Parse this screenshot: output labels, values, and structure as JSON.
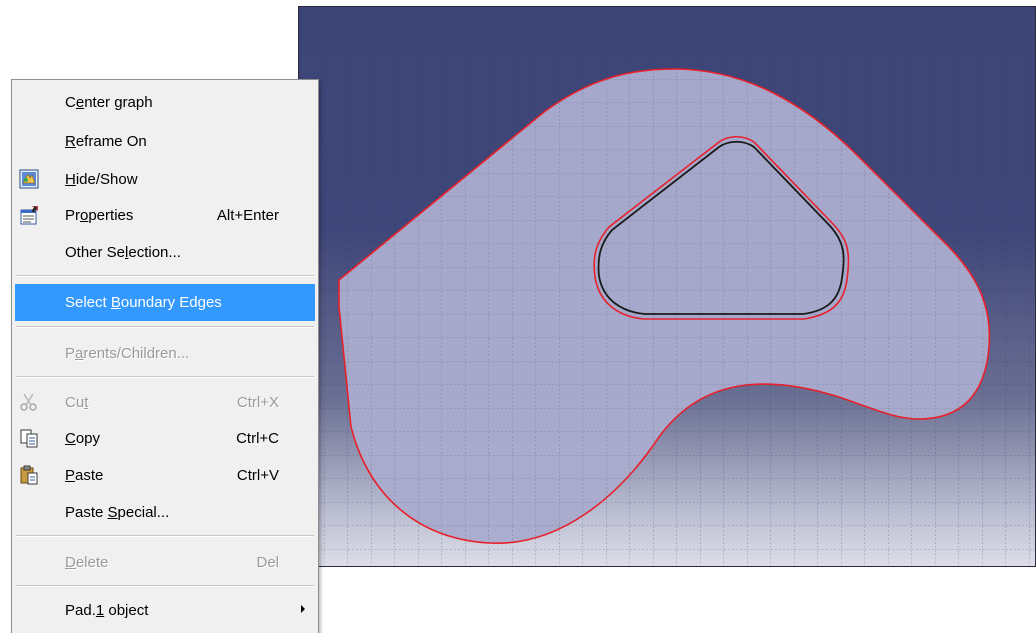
{
  "menu": {
    "items": [
      {
        "id": "center-graph",
        "pre": "C",
        "ul": "e",
        "post": "nter graph",
        "shortcut": "",
        "state": "normal"
      },
      {
        "id": "reframe-on",
        "pre": "",
        "ul": "R",
        "post": "eframe On",
        "shortcut": "",
        "state": "normal"
      },
      {
        "id": "hide-show",
        "pre": "",
        "ul": "H",
        "post": "ide/Show",
        "shortcut": "",
        "state": "normal",
        "icon": "hide-show-icon"
      },
      {
        "id": "properties",
        "pre": "Pr",
        "ul": "o",
        "post": "perties",
        "shortcut": "Alt+Enter",
        "state": "normal",
        "icon": "properties-icon"
      },
      {
        "id": "other-selection",
        "pre": "Other Se",
        "ul": "l",
        "post": "ection...",
        "shortcut": "",
        "state": "normal"
      },
      {
        "id": "select-boundary-edges",
        "pre": "Select ",
        "ul": "B",
        "post": "oundary Edges",
        "shortcut": "",
        "state": "highlighted"
      },
      {
        "id": "parents-children",
        "pre": "P",
        "ul": "a",
        "post": "rents/Children...",
        "shortcut": "",
        "state": "disabled"
      },
      {
        "id": "cut",
        "pre": "Cu",
        "ul": "t",
        "post": "",
        "shortcut": "Ctrl+X",
        "state": "disabled",
        "icon": "scissors-icon"
      },
      {
        "id": "copy",
        "pre": "",
        "ul": "C",
        "post": "opy",
        "shortcut": "Ctrl+C",
        "state": "normal",
        "icon": "copy-icon"
      },
      {
        "id": "paste",
        "pre": "",
        "ul": "P",
        "post": "aste",
        "shortcut": "Ctrl+V",
        "state": "normal",
        "icon": "paste-icon"
      },
      {
        "id": "paste-special",
        "pre": "Paste ",
        "ul": "S",
        "post": "pecial...",
        "shortcut": "",
        "state": "normal"
      },
      {
        "id": "delete",
        "pre": "",
        "ul": "D",
        "post": "elete",
        "shortcut": "Del",
        "state": "disabled"
      },
      {
        "id": "pad-object",
        "pre": "Pad.",
        "ul": "1",
        "post": " object",
        "shortcut": "",
        "state": "normal",
        "submenu": true
      }
    ]
  },
  "colors": {
    "highlight": "#3399ff",
    "edge_red": "#e8202a",
    "shape_fill": "#a9abcd",
    "viewport_bg": "#3d4577"
  }
}
